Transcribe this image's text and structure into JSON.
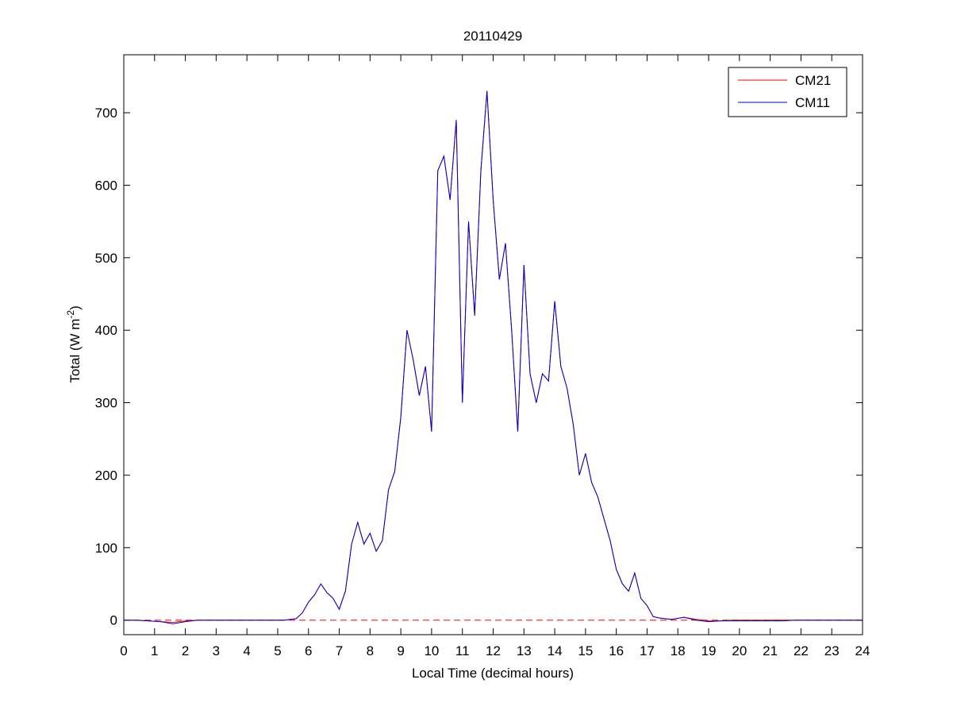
{
  "chart_data": {
    "type": "line",
    "title": "20110429",
    "xlabel": "Local Time (decimal hours)",
    "ylabel": {
      "text": "Total (W m",
      "superscript": "-2",
      "suffix": ")"
    },
    "xlim": [
      0,
      24
    ],
    "xticks": [
      0,
      1,
      2,
      3,
      4,
      5,
      6,
      7,
      8,
      9,
      10,
      11,
      12,
      13,
      14,
      15,
      16,
      17,
      18,
      19,
      20,
      21,
      22,
      23,
      24
    ],
    "ylim": [
      -20,
      780
    ],
    "yticks": [
      0,
      100,
      200,
      300,
      400,
      500,
      600,
      700
    ],
    "legend": "upper right",
    "reference_line": {
      "value": 0,
      "color": "#ff0000",
      "style": "dashed"
    },
    "x": [
      0,
      0.4,
      0.8,
      1.2,
      1.6,
      2.0,
      2.4,
      2.8,
      3.2,
      3.6,
      4.0,
      4.4,
      4.8,
      5.2,
      5.6,
      5.8,
      6.0,
      6.2,
      6.4,
      6.6,
      6.8,
      7.0,
      7.2,
      7.4,
      7.6,
      7.8,
      8.0,
      8.2,
      8.4,
      8.6,
      8.8,
      9.0,
      9.2,
      9.4,
      9.6,
      9.8,
      10.0,
      10.2,
      10.4,
      10.6,
      10.8,
      11.0,
      11.2,
      11.4,
      11.6,
      11.8,
      12.0,
      12.2,
      12.4,
      12.6,
      12.8,
      13.0,
      13.2,
      13.4,
      13.6,
      13.8,
      14.0,
      14.2,
      14.4,
      14.6,
      14.8,
      15.0,
      15.2,
      15.4,
      15.6,
      15.8,
      16.0,
      16.2,
      16.4,
      16.6,
      16.8,
      17.0,
      17.2,
      17.4,
      17.8,
      18.2,
      18.6,
      19.0,
      19.4,
      19.8,
      20.2,
      20.6,
      21.0,
      21.4,
      21.8,
      22.2,
      22.6,
      23.0,
      23.4,
      23.8,
      24.0
    ],
    "series": [
      {
        "name": "CM21",
        "color": "#ff0000",
        "values": [
          0,
          0,
          -1,
          -2,
          -3,
          -1,
          0,
          0,
          0,
          0,
          0,
          0,
          0,
          0,
          2,
          10,
          25,
          35,
          50,
          38,
          30,
          15,
          40,
          105,
          135,
          105,
          120,
          95,
          110,
          180,
          205,
          280,
          400,
          360,
          310,
          350,
          260,
          620,
          640,
          580,
          690,
          300,
          550,
          420,
          620,
          730,
          580,
          470,
          520,
          400,
          260,
          490,
          340,
          300,
          340,
          330,
          440,
          350,
          320,
          270,
          200,
          230,
          190,
          170,
          140,
          110,
          70,
          50,
          40,
          65,
          30,
          20,
          5,
          3,
          1,
          4,
          1,
          -1,
          -1,
          0,
          0,
          0,
          0,
          0,
          0,
          0,
          0,
          0,
          0,
          0,
          0
        ]
      },
      {
        "name": "CM11",
        "color": "#0000cc",
        "values": [
          0,
          0,
          -1,
          -2,
          -5,
          -2,
          0,
          0,
          0,
          0,
          0,
          0,
          0,
          0,
          2,
          10,
          25,
          35,
          50,
          38,
          30,
          15,
          40,
          105,
          135,
          105,
          120,
          95,
          110,
          180,
          205,
          280,
          400,
          360,
          310,
          350,
          260,
          620,
          640,
          580,
          690,
          300,
          550,
          420,
          620,
          730,
          580,
          470,
          520,
          400,
          260,
          490,
          340,
          300,
          340,
          330,
          440,
          350,
          320,
          270,
          200,
          230,
          190,
          170,
          140,
          110,
          70,
          50,
          40,
          65,
          30,
          20,
          5,
          3,
          1,
          4,
          0,
          -2,
          -1,
          -1,
          -1,
          -1,
          -1,
          -1,
          0,
          0,
          0,
          0,
          0,
          0,
          0
        ]
      }
    ]
  }
}
